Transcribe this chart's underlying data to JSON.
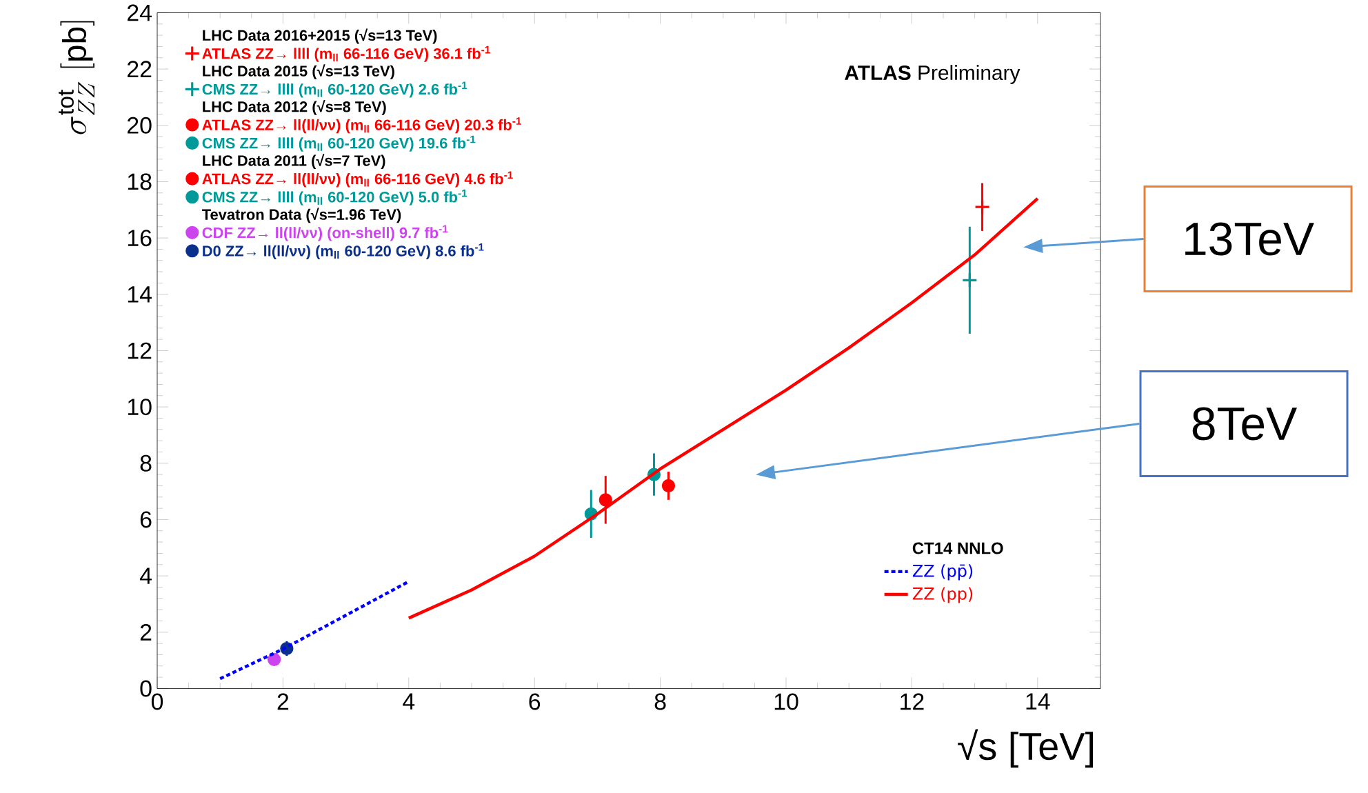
{
  "chart_data": {
    "type": "scatter",
    "xlabel": "√s [TeV]",
    "ylabel": "\\sigma^{\\mathrm{tot}}_{ZZ}\\ [\\mathrm{pb}]",
    "xlim": [
      0,
      15
    ],
    "xticks": [
      0,
      2,
      4,
      6,
      8,
      10,
      12,
      14
    ],
    "ylim": [
      0,
      24
    ],
    "yticks": [
      0,
      2,
      4,
      6,
      8,
      10,
      12,
      14,
      16,
      18,
      20,
      22,
      24
    ],
    "legend": "top left",
    "grid": false,
    "annotations": [
      "LHC Data 2016+2015 (√s=13 TeV)",
      "LHC Data 2015 (√s=13 TeV)",
      "LHC Data 2012 (√s=8 TeV)",
      "LHC Data 2011 (√s=7 TeV)",
      "Tevatron Data (√s=1.96 TeV)",
      "**ATLAS** Preliminary",
      "CT14 NNLO",
      "13TeV",
      "8TeV"
    ],
    "series": [
      {
        "name": "ATLAS ZZ→ llll (m$_{ll}$ 66-116 GeV) 36.1 fb$^{-1}$",
        "color": "#ff0000",
        "marker": "cross",
        "x": [
          13.12
        ],
        "values": [
          17.1
        ],
        "errors": [
          0.85
        ]
      },
      {
        "name": "CMS ZZ→ llll (m$_{ll}$ 60-120 GeV) 2.6 fb$^{-1}$",
        "color": "#009999",
        "marker": "cross",
        "x": [
          12.92
        ],
        "values": [
          14.5
        ],
        "errors": [
          1.9
        ]
      },
      {
        "name": "ATLAS ZZ→ ll(ll/νν) (m$_{ll}$ 66-116 GeV) 20.3 fb$^{-1}$",
        "color": "#ff0000",
        "marker": "circle",
        "x": [
          8.13
        ],
        "values": [
          7.2
        ],
        "errors": [
          0.5
        ]
      },
      {
        "name": "CMS ZZ→ llll (m$_{ll}$ 60-120 GeV) 19.6 fb$^{-1}$",
        "color": "#009999",
        "marker": "circle",
        "x": [
          7.9
        ],
        "values": [
          7.6
        ],
        "errors": [
          0.75
        ]
      },
      {
        "name": "ATLAS ZZ→ ll(ll/νν) (m$_{ll}$ 66-116 GeV) 4.6 fb$^{-1}$",
        "color": "#ff0000",
        "marker": "circle",
        "x": [
          7.13
        ],
        "values": [
          6.7
        ],
        "errors": [
          0.85
        ]
      },
      {
        "name": "CMS ZZ→ llll (m$_{ll}$ 60-120 GeV) 5.0 fb$^{-1}$",
        "color": "#009999",
        "marker": "circle",
        "x": [
          6.9
        ],
        "values": [
          6.2
        ],
        "errors": [
          0.85
        ]
      },
      {
        "name": "CDF ZZ→ ll(ll/νν) (on-shell) 9.7 fb$^{-1}$",
        "color": "#cc44ee",
        "marker": "circle",
        "x": [
          1.86
        ],
        "values": [
          1.03
        ],
        "errors": [
          0.2
        ]
      },
      {
        "name": "D0 ZZ→ ll(ll/νν) (m$_{ll}$ 60-120 GeV) 8.6 fb$^{-1}$",
        "color": "#0a2f8c",
        "marker": "circle",
        "x": [
          2.06
        ],
        "values": [
          1.42
        ],
        "errors": [
          0.26
        ]
      },
      {
        "name": "ZZ (pp̄)",
        "type": "line",
        "color": "#0000ff",
        "line_style": "dashed",
        "marker": "none",
        "x": [
          1,
          2,
          3,
          4
        ],
        "values": [
          0.35,
          1.4,
          2.6,
          3.8
        ]
      },
      {
        "name": "ZZ (pp)",
        "type": "line",
        "color": "#ff0000",
        "line_style": "solid",
        "marker": "none",
        "x": [
          4,
          5,
          6,
          7,
          8,
          9,
          10,
          11,
          12,
          13,
          14
        ],
        "values": [
          2.5,
          3.5,
          4.7,
          6.2,
          7.8,
          9.2,
          10.6,
          12.1,
          13.7,
          15.4,
          17.4
        ]
      }
    ]
  }
}
